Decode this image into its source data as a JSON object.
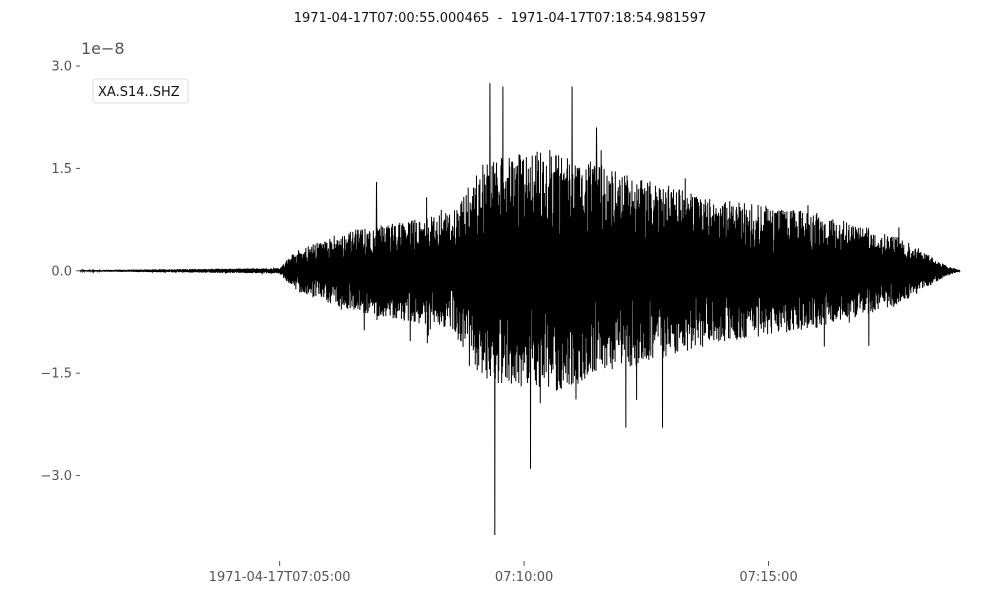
{
  "chart_data": {
    "type": "line",
    "title": "1971-04-17T07:00:55.000465  -  1971-04-17T07:18:54.981597",
    "y_offset_label": "1e−8",
    "series": [
      {
        "name": "XA.S14..SHZ",
        "color": "#000000"
      }
    ],
    "x_range": [
      "1971-04-17T07:00:55.000465",
      "1971-04-17T07:18:54.981597"
    ],
    "x_ticks": [
      {
        "time": "07:05:00",
        "label": "1971-04-17T07:05:00"
      },
      {
        "time": "07:10:00",
        "label": "07:10:00"
      },
      {
        "time": "07:15:00",
        "label": "07:15:00"
      }
    ],
    "ylim": [
      -3.9,
      3.0
    ],
    "y_ticks": [
      {
        "value": 3.0,
        "label": "3.0"
      },
      {
        "value": 1.5,
        "label": "1.5"
      },
      {
        "value": 0.0,
        "label": "0.0"
      },
      {
        "value": -1.5,
        "label": "−1.5"
      },
      {
        "value": -3.0,
        "label": "−3.0"
      }
    ],
    "envelope_keypoints": [
      {
        "time": "07:00:55",
        "amp": 0.01
      },
      {
        "time": "07:05:00",
        "amp": 0.04
      },
      {
        "time": "07:05:20",
        "amp": 0.3
      },
      {
        "time": "07:06:30",
        "amp": 0.6
      },
      {
        "time": "07:08:30",
        "amp": 0.85
      },
      {
        "time": "07:09:10",
        "amp": 1.6
      },
      {
        "time": "07:10:30",
        "amp": 1.8
      },
      {
        "time": "07:12:00",
        "amp": 1.45
      },
      {
        "time": "07:14:00",
        "amp": 1.05
      },
      {
        "time": "07:16:00",
        "amp": 0.85
      },
      {
        "time": "07:17:40",
        "amp": 0.5
      },
      {
        "time": "07:18:40",
        "amp": 0.06
      }
    ],
    "peaks": [
      {
        "time": "07:06:59",
        "value": 1.3
      },
      {
        "time": "07:09:18",
        "value": 2.75
      },
      {
        "time": "07:09:24",
        "value": -3.87
      },
      {
        "time": "07:09:34",
        "value": 2.7
      },
      {
        "time": "07:10:08",
        "value": -2.9
      },
      {
        "time": "07:10:59",
        "value": 2.7
      },
      {
        "time": "07:11:29",
        "value": 2.1
      },
      {
        "time": "07:12:05",
        "value": -2.3
      },
      {
        "time": "07:12:50",
        "value": -2.3
      },
      {
        "time": "07:17:03",
        "value": -1.1
      }
    ],
    "grid": false,
    "legend_position": "top-left"
  }
}
